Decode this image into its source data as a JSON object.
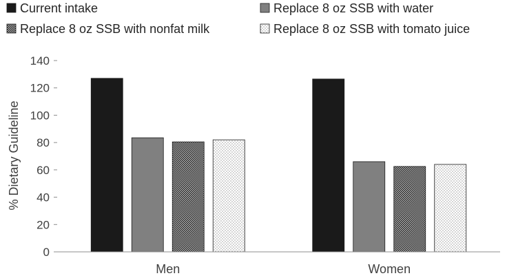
{
  "chart_data": {
    "type": "bar",
    "title": "",
    "xlabel": "",
    "ylabel": "% Dietary Guideline",
    "ylim": [
      0,
      140
    ],
    "yticks": [
      0,
      20,
      40,
      60,
      80,
      100,
      120,
      140
    ],
    "grid": false,
    "legend_position": "top",
    "categories": [
      "Men",
      "Women"
    ],
    "series": [
      {
        "name": "Current intake",
        "values": [
          127,
          126.5
        ],
        "color": "#1a1a1a",
        "pattern": "solid"
      },
      {
        "name": "Replace 8 oz SSB with water",
        "values": [
          83.5,
          66
        ],
        "color": "#808080",
        "pattern": "solid"
      },
      {
        "name": "Replace 8 oz SSB with nonfat milk",
        "values": [
          80.5,
          62.5
        ],
        "color": "#1a1a1a",
        "pattern": "checker"
      },
      {
        "name": "Replace 8 oz SSB with tomato juice",
        "values": [
          82,
          64
        ],
        "color": "#ffffff",
        "pattern": "dots"
      }
    ]
  }
}
